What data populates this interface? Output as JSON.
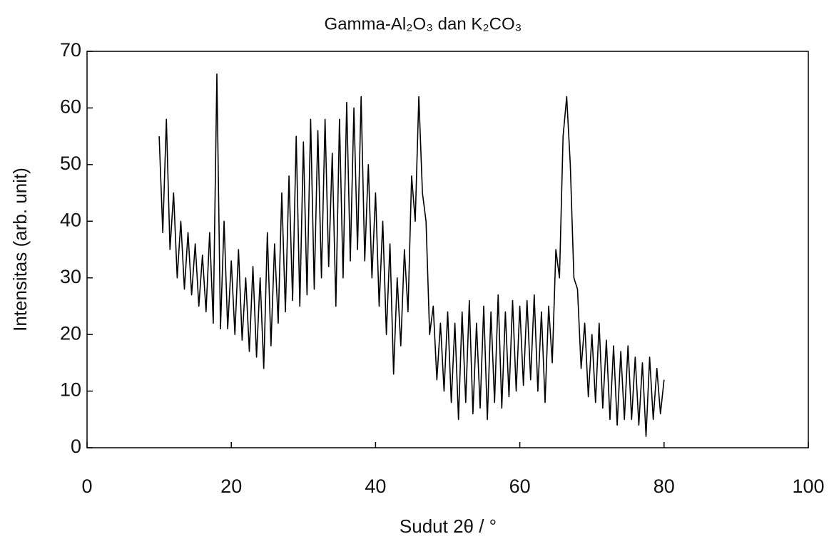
{
  "chart_data": {
    "type": "line",
    "title": "Gamma-Al₂O₃ dan K₂CO₃",
    "x_label": "Sudut 2θ / °",
    "y_label": "Intensitas (arb. unit)",
    "xlim": [
      0,
      100
    ],
    "ylim": [
      0,
      70
    ],
    "xticks": [
      0,
      20,
      40,
      60,
      80,
      100
    ],
    "yticks": [
      0,
      10,
      20,
      30,
      40,
      50,
      60,
      70
    ],
    "series": [
      {
        "color": "#000000",
        "x": [
          10,
          10.5,
          11,
          11.5,
          12,
          12.5,
          13,
          13.5,
          14,
          14.5,
          15,
          15.5,
          16,
          16.5,
          17,
          17.5,
          18,
          18.5,
          19,
          19.5,
          20,
          20.5,
          21,
          21.5,
          22,
          22.5,
          23,
          23.5,
          24,
          24.5,
          25,
          25.5,
          26,
          26.5,
          27,
          27.5,
          28,
          28.5,
          29,
          29.5,
          30,
          30.5,
          31,
          31.5,
          32,
          32.5,
          33,
          33.5,
          34,
          34.5,
          35,
          35.5,
          36,
          36.5,
          37,
          37.5,
          38,
          38.5,
          39,
          39.5,
          40,
          40.5,
          41,
          41.5,
          42,
          42.5,
          43,
          43.5,
          44,
          44.5,
          45,
          45.5,
          46,
          46.5,
          47,
          47.5,
          48,
          48.5,
          49,
          49.5,
          50,
          50.5,
          51,
          51.5,
          52,
          52.5,
          53,
          53.5,
          54,
          54.5,
          55,
          55.5,
          56,
          56.5,
          57,
          57.5,
          58,
          58.5,
          59,
          59.5,
          60,
          60.5,
          61,
          61.5,
          62,
          62.5,
          63,
          63.5,
          64,
          64.5,
          65,
          65.5,
          66,
          66.5,
          67,
          67.5,
          68,
          68.5,
          69,
          69.5,
          70,
          70.5,
          71,
          71.5,
          72,
          72.5,
          73,
          73.5,
          74,
          74.5,
          75,
          75.5,
          76,
          76.5,
          77,
          77.5,
          78,
          78.5,
          79,
          79.5,
          80
        ],
        "values": [
          55,
          38,
          58,
          35,
          45,
          30,
          40,
          28,
          38,
          27,
          36,
          25,
          34,
          24,
          38,
          22,
          66,
          21,
          40,
          21,
          33,
          20,
          35,
          19,
          30,
          17,
          32,
          16,
          30,
          14,
          38,
          18,
          36,
          22,
          45,
          24,
          48,
          26,
          55,
          25,
          54,
          27,
          58,
          28,
          56,
          30,
          58,
          32,
          52,
          25,
          58,
          30,
          61,
          33,
          60,
          35,
          62,
          33,
          50,
          30,
          45,
          25,
          40,
          20,
          36,
          13,
          30,
          18,
          35,
          24,
          48,
          40,
          62,
          45,
          40,
          20,
          25,
          12,
          22,
          10,
          24,
          8,
          22,
          5,
          24,
          8,
          26,
          6,
          22,
          7,
          25,
          5,
          24,
          8,
          27,
          7,
          24,
          9,
          26,
          10,
          25,
          11,
          26,
          12,
          27,
          10,
          24,
          8,
          25,
          15,
          35,
          30,
          55,
          62,
          50,
          30,
          28,
          14,
          22,
          9,
          20,
          8,
          22,
          7,
          19,
          5,
          18,
          4,
          17,
          5,
          18,
          5,
          16,
          4,
          15,
          2,
          16,
          5,
          14,
          6,
          12
        ]
      }
    ]
  }
}
